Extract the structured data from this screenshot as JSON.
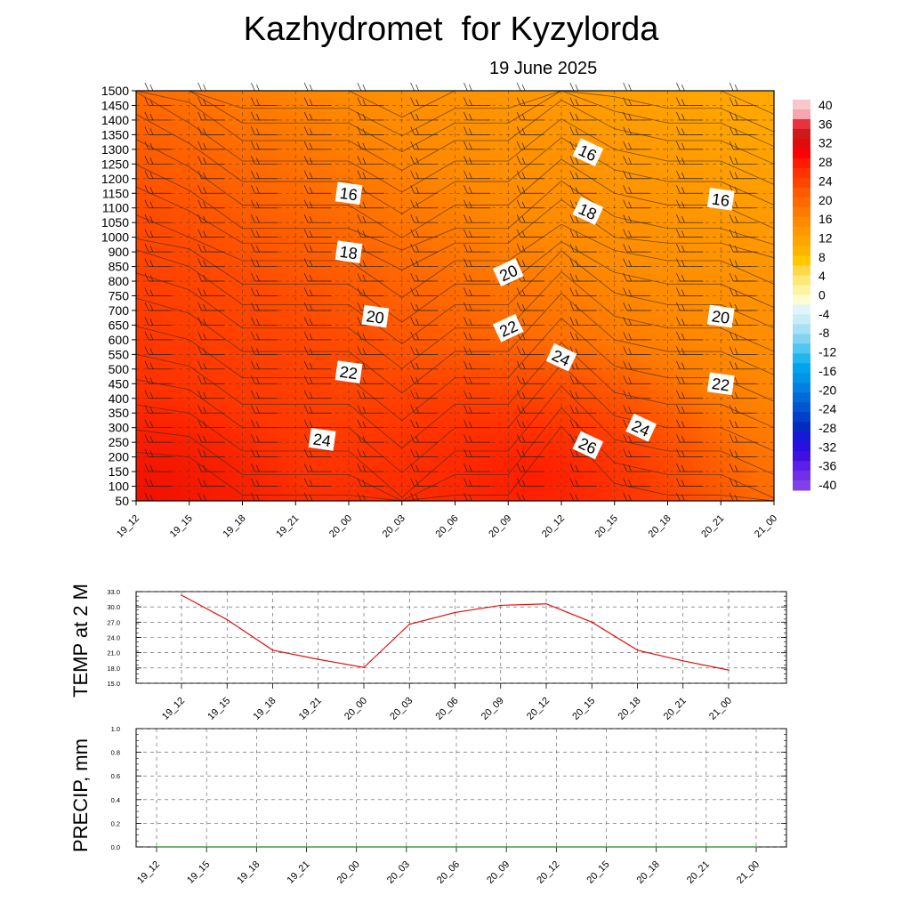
{
  "title": "Kazhydromet  for Kyzylorda",
  "subtitle": "19 June 2025",
  "chart_data": [
    {
      "type": "heatmap",
      "x_ticks": [
        "19_12",
        "19_15",
        "19_18",
        "19_21",
        "20_00",
        "20_03",
        "20_06",
        "20_09",
        "20_12",
        "20_15",
        "20_18",
        "20_21",
        "21_00"
      ],
      "y_ticks": [
        "50",
        "100",
        "150",
        "200",
        "250",
        "300",
        "350",
        "400",
        "450",
        "500",
        "550",
        "600",
        "650",
        "700",
        "750",
        "800",
        "850",
        "900",
        "1000",
        "1050",
        "1100",
        "1150",
        "1200",
        "1250",
        "1300",
        "1350",
        "1400",
        "1450",
        "1500"
      ],
      "colorbar_ticks": [
        "40",
        "36",
        "32",
        "28",
        "24",
        "20",
        "16",
        "12",
        "8",
        "4",
        "0",
        "-4",
        "-8",
        "-12",
        "-16",
        "-20",
        "-24",
        "-28",
        "-32",
        "-36",
        "-40"
      ],
      "contour_labels": [
        {
          "text": "16",
          "x": 4,
          "y": 1150
        },
        {
          "text": "18",
          "x": 4,
          "y": 900
        },
        {
          "text": "20",
          "x": 4.5,
          "y": 680
        },
        {
          "text": "22",
          "x": 4,
          "y": 490
        },
        {
          "text": "24",
          "x": 3.5,
          "y": 260
        },
        {
          "text": "16",
          "x": 8.5,
          "y": 1290
        },
        {
          "text": "18",
          "x": 8.5,
          "y": 1090
        },
        {
          "text": "20",
          "x": 7,
          "y": 830
        },
        {
          "text": "22",
          "x": 7,
          "y": 640
        },
        {
          "text": "24",
          "x": 8,
          "y": 540
        },
        {
          "text": "26",
          "x": 8.5,
          "y": 240
        },
        {
          "text": "24",
          "x": 9.5,
          "y": 300
        },
        {
          "text": "16",
          "x": 11,
          "y": 1130
        },
        {
          "text": "20",
          "x": 11,
          "y": 680
        },
        {
          "text": "22",
          "x": 11,
          "y": 450
        }
      ]
    },
    {
      "type": "line",
      "ylabel": "TEMP at 2 M",
      "x_ticks": [
        "19_12",
        "19_15",
        "19_18",
        "19_21",
        "20_00",
        "20_03",
        "20_06",
        "20_09",
        "20_12",
        "20_15",
        "20_18",
        "20_21",
        "21_00"
      ],
      "y_ticks": [
        "33.0",
        "30.0",
        "27.0",
        "24.0",
        "21.0",
        "18.0",
        "15.0"
      ],
      "ylim": [
        15,
        33
      ],
      "values": [
        32.3,
        27.5,
        21.5,
        19.7,
        18.1,
        26.6,
        28.9,
        30.3,
        30.6,
        27.0,
        21.5,
        19.4,
        17.6
      ],
      "line_color": "#e01010"
    },
    {
      "type": "line",
      "ylabel": "PRECIP, mm",
      "x_ticks": [
        "19_12",
        "19_15",
        "19_18",
        "19_21",
        "20_00",
        "20_03",
        "20_06",
        "20_09",
        "20_12",
        "20_15",
        "20_18",
        "20_21",
        "21_00"
      ],
      "y_ticks": [
        "1.0",
        "0.8",
        "0.6",
        "0.4",
        "0.2",
        "0.0"
      ],
      "ylim": [
        0,
        1
      ],
      "values": [
        0,
        0,
        0,
        0,
        0,
        0,
        0,
        0,
        0,
        0,
        0,
        0,
        0
      ],
      "line_color": "#1a8a1a"
    }
  ]
}
